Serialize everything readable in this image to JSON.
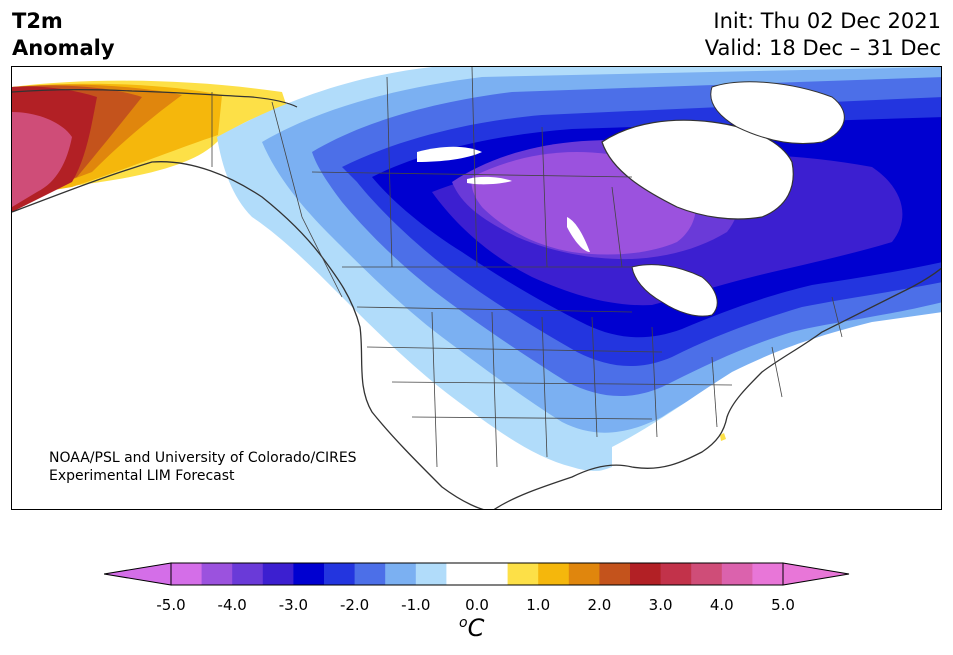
{
  "header": {
    "title_line1": "T2m",
    "title_line2": "Anomaly",
    "init_text": "Init: Thu 02 Dec 2021",
    "valid_text": "Valid: 18 Dec – 31 Dec"
  },
  "map": {
    "credit_line1": "NOAA/PSL and University of Colorado/CIRES",
    "credit_line2": "Experimental LIM Forecast"
  },
  "colorbar": {
    "ticks": [
      "-5.0",
      "-4.0",
      "-3.0",
      "-2.0",
      "-1.0",
      "0.0",
      "1.0",
      "2.0",
      "3.0",
      "4.0",
      "5.0"
    ],
    "unit_main": "C",
    "unit_super": "o",
    "colors": [
      "#d46ee8",
      "#9b52de",
      "#6a3ad8",
      "#3c1fd0",
      "#0000d0",
      "#2335df",
      "#4c6fe8",
      "#7bb0f2",
      "#b1dcfa",
      "#ffffff",
      "#ffffff",
      "#fde047",
      "#f5b70c",
      "#e0860d",
      "#c4531c",
      "#b22025",
      "#c2324a",
      "#cf4d78",
      "#db62ad",
      "#e876d8"
    ]
  }
}
